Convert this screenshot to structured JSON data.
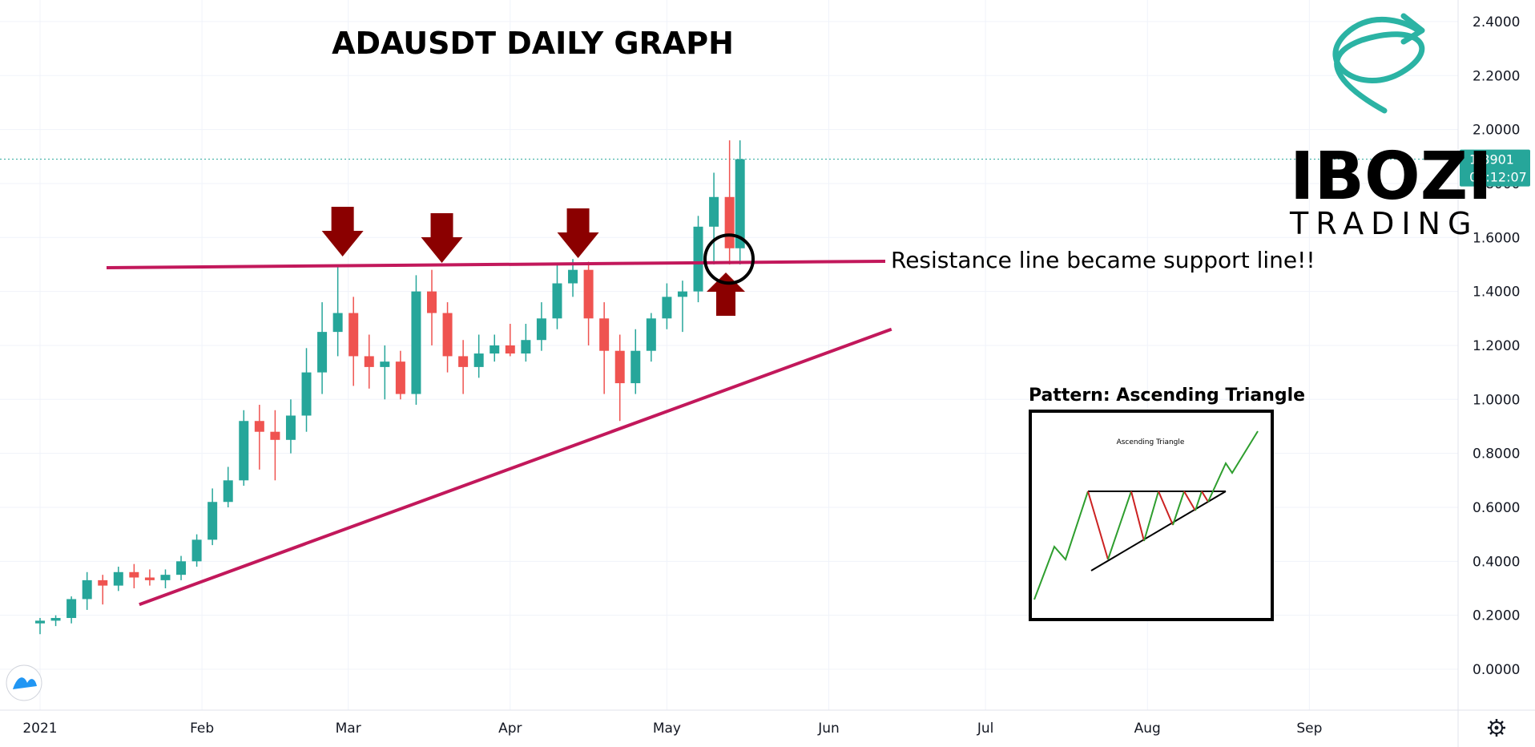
{
  "title": "ADAUSDT DAILY GRAPH",
  "annotation": "Resistance line became support line!!",
  "inset": {
    "title": "Pattern: Ascending Triangle",
    "subtitle": "Ascending Triangle"
  },
  "logo": {
    "line1": "IBOZI",
    "line2": "TRADING"
  },
  "price_label": {
    "price": "1.8901",
    "countdown": "05:12:07"
  },
  "colors": {
    "up": "#26a69a",
    "down": "#ef5350",
    "trendline": "#c2185b",
    "arrow": "#8b0000",
    "logo_accent": "#2bb3a4",
    "inset_up": "#2e9e2e",
    "inset_down": "#cc2222"
  },
  "chart_data": {
    "type": "candlestick",
    "title": "ADAUSDT DAILY GRAPH",
    "xlabel": "",
    "ylabel": "",
    "y_ticks": [
      "2.4000",
      "2.2000",
      "2.0000",
      "1.8000",
      "1.6000",
      "1.4000",
      "1.2000",
      "1.0000",
      "0.8000",
      "0.6000",
      "0.4000",
      "0.2000",
      "0.0000"
    ],
    "x_ticks": [
      "2021",
      "Feb",
      "Mar",
      "Apr",
      "May",
      "Jun",
      "Jul",
      "Aug",
      "Sep"
    ],
    "ylim": [
      -0.15,
      2.5
    ],
    "grid": true,
    "last_price": 1.8901,
    "annotations": {
      "resistance_level": 1.5,
      "support_trend_start": [
        "2021-01-20",
        0.24
      ],
      "support_trend_end": [
        "2021-06-13",
        1.26
      ],
      "down_arrows_at": [
        "2021-02-27",
        "2021-03-18",
        "2021-04-14"
      ],
      "circle_at": [
        "2021-05-15",
        1.52
      ]
    },
    "series": [
      {
        "dates": [
          "2021-01-01",
          "2021-01-04",
          "2021-01-07",
          "2021-01-10",
          "2021-01-13",
          "2021-01-16",
          "2021-01-19",
          "2021-01-22",
          "2021-01-25",
          "2021-01-28",
          "2021-01-31",
          "2021-02-03",
          "2021-02-06",
          "2021-02-09",
          "2021-02-12",
          "2021-02-15",
          "2021-02-18",
          "2021-02-21",
          "2021-02-24",
          "2021-02-27",
          "2021-03-02",
          "2021-03-05",
          "2021-03-08",
          "2021-03-11",
          "2021-03-14",
          "2021-03-17",
          "2021-03-20",
          "2021-03-23",
          "2021-03-26",
          "2021-03-29",
          "2021-04-01",
          "2021-04-04",
          "2021-04-07",
          "2021-04-10",
          "2021-04-13",
          "2021-04-16",
          "2021-04-19",
          "2021-04-22",
          "2021-04-25",
          "2021-04-28",
          "2021-05-01",
          "2021-05-04",
          "2021-05-07",
          "2021-05-10",
          "2021-05-13",
          "2021-05-15"
        ],
        "open": [
          0.17,
          0.18,
          0.19,
          0.26,
          0.33,
          0.31,
          0.36,
          0.34,
          0.33,
          0.35,
          0.4,
          0.48,
          0.62,
          0.7,
          0.92,
          0.88,
          0.85,
          0.94,
          1.1,
          1.25,
          1.32,
          1.16,
          1.12,
          1.14,
          1.02,
          1.4,
          1.32,
          1.16,
          1.12,
          1.17,
          1.2,
          1.17,
          1.22,
          1.3,
          1.43,
          1.48,
          1.3,
          1.18,
          1.06,
          1.18,
          1.3,
          1.38,
          1.4,
          1.64,
          1.75,
          1.56
        ],
        "high": [
          0.19,
          0.2,
          0.27,
          0.36,
          0.35,
          0.38,
          0.39,
          0.37,
          0.37,
          0.42,
          0.5,
          0.67,
          0.75,
          0.96,
          0.98,
          0.96,
          1.0,
          1.19,
          1.36,
          1.49,
          1.38,
          1.24,
          1.2,
          1.18,
          1.46,
          1.48,
          1.36,
          1.22,
          1.24,
          1.24,
          1.28,
          1.28,
          1.36,
          1.5,
          1.52,
          1.51,
          1.36,
          1.24,
          1.26,
          1.32,
          1.43,
          1.44,
          1.68,
          1.84,
          1.96,
          1.96
        ],
        "low": [
          0.13,
          0.16,
          0.17,
          0.22,
          0.24,
          0.29,
          0.3,
          0.31,
          0.3,
          0.33,
          0.38,
          0.46,
          0.6,
          0.68,
          0.74,
          0.7,
          0.8,
          0.88,
          1.02,
          1.16,
          1.05,
          1.04,
          1.0,
          1.0,
          0.98,
          1.2,
          1.1,
          1.02,
          1.08,
          1.14,
          1.16,
          1.14,
          1.18,
          1.26,
          1.38,
          1.2,
          1.02,
          0.92,
          1.02,
          1.14,
          1.26,
          1.25,
          1.36,
          1.5,
          1.5,
          1.5
        ],
        "close": [
          0.18,
          0.19,
          0.26,
          0.33,
          0.31,
          0.36,
          0.34,
          0.33,
          0.35,
          0.4,
          0.48,
          0.62,
          0.7,
          0.92,
          0.88,
          0.85,
          0.94,
          1.1,
          1.25,
          1.32,
          1.16,
          1.12,
          1.14,
          1.02,
          1.4,
          1.32,
          1.16,
          1.12,
          1.17,
          1.2,
          1.17,
          1.22,
          1.3,
          1.43,
          1.48,
          1.3,
          1.18,
          1.06,
          1.18,
          1.3,
          1.38,
          1.4,
          1.64,
          1.75,
          1.56,
          1.89
        ]
      }
    ]
  }
}
